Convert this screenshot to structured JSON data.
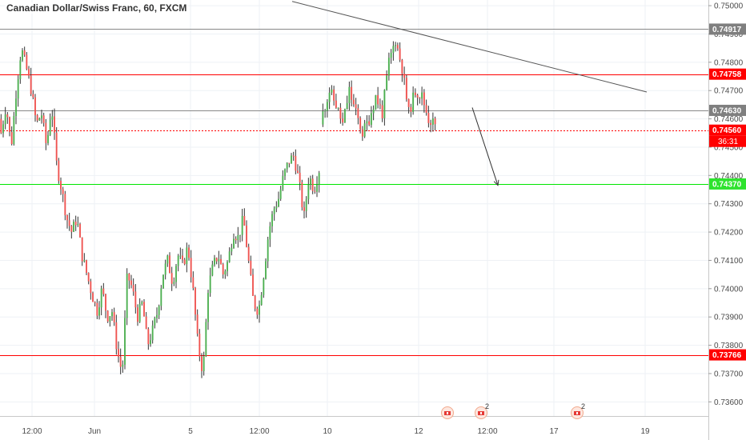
{
  "header": {
    "title": "Canadian Dollar/Swiss Franc, 60, FXCM"
  },
  "colors": {
    "up": "#4caf50",
    "down": "#ef5350",
    "wick": "#333333",
    "red_line": "#ff0000",
    "gray_line": "#888888",
    "green_line": "#00e600",
    "trend_line": "#555555",
    "tag_red": "#ff0000",
    "tag_gray": "#7f7f7f",
    "tag_green": "#2ee32e",
    "tag_dark": "#111111",
    "grid": "#eef1f5"
  },
  "chart_data": {
    "type": "candlestick",
    "title": "Canadian Dollar/Swiss Franc, 60, FXCM",
    "ylim": [
      0.7355,
      0.7502
    ],
    "y_ticks": [
      "0.75000",
      "0.74900",
      "0.74800",
      "0.74700",
      "0.74600",
      "0.74500",
      "0.74400",
      "0.74300",
      "0.74200",
      "0.74100",
      "0.74000",
      "0.73900",
      "0.73800",
      "0.73700",
      "0.73600"
    ],
    "x_ticks": [
      "12:00",
      "Jun",
      "5",
      "12:00",
      "10",
      "12",
      "12:00",
      "17",
      "19"
    ],
    "grid": true,
    "price_levels": [
      {
        "value": 0.74917,
        "label": "0.74917",
        "style": "gray"
      },
      {
        "value": 0.74758,
        "label": "0.74758",
        "style": "red"
      },
      {
        "value": 0.7463,
        "label": "0.74630",
        "style": "gray"
      },
      {
        "value": 0.7456,
        "label": "0.74560",
        "style": "red-dotted"
      },
      {
        "value": 0.7437,
        "label": "0.74370",
        "style": "green"
      },
      {
        "value": 0.73766,
        "label": "0.73766",
        "style": "red"
      }
    ],
    "countdown": "36:31",
    "trend_line": {
      "y_start": 0.75015,
      "y_end": 0.74695
    },
    "forecast_arrow": {
      "y_start": 0.7464,
      "y_end": 0.74365
    },
    "events": [
      {
        "label": ""
      },
      {
        "label": "2"
      },
      {
        "label": "2"
      }
    ],
    "segments": [
      {
        "open": 0.746,
        "waypoints": [
          0.7455,
          0.7465,
          0.745,
          0.747,
          0.7485,
          0.7478,
          0.747,
          0.7458,
          0.7462,
          0.745,
          0.7465,
          0.7444,
          0.7435,
          0.7425,
          0.742,
          0.7425,
          0.7412,
          0.7405,
          0.7398,
          0.7392,
          0.74,
          0.739,
          0.7392,
          0.7378,
          0.737,
          0.7405,
          0.74,
          0.739,
          0.7395,
          0.738,
          0.7385,
          0.7392,
          0.7405,
          0.741,
          0.7402,
          0.7412,
          0.7408,
          0.7415,
          0.74,
          0.738,
          0.737,
          0.74,
          0.7408,
          0.7412,
          0.7405,
          0.741,
          0.742,
          0.7418,
          0.7425,
          0.741,
          0.7395,
          0.7392,
          0.7405,
          0.742,
          0.7428,
          0.7432,
          0.744,
          0.7445,
          0.7447,
          0.7438,
          0.7425,
          0.744,
          0.7435,
          0.7442
        ],
        "count": 150,
        "seed": 7
      }
    ],
    "segment2": {
      "open": 0.7458,
      "waypoints": [
        0.7462,
        0.747,
        0.7465,
        0.7458,
        0.747,
        0.7462,
        0.7455,
        0.746,
        0.7468,
        0.7462,
        0.748,
        0.7488,
        0.7478,
        0.7462,
        0.747,
        0.7468,
        0.746,
        0.7458
      ],
      "count": 52,
      "seed": 11
    }
  },
  "layout_x": {
    "candles1": [
      0,
      400
    ],
    "candles2": [
      402,
      545
    ],
    "trend": [
      365,
      808
    ],
    "arrow": [
      590,
      622
    ],
    "events": [
      559,
      601,
      721
    ]
  }
}
